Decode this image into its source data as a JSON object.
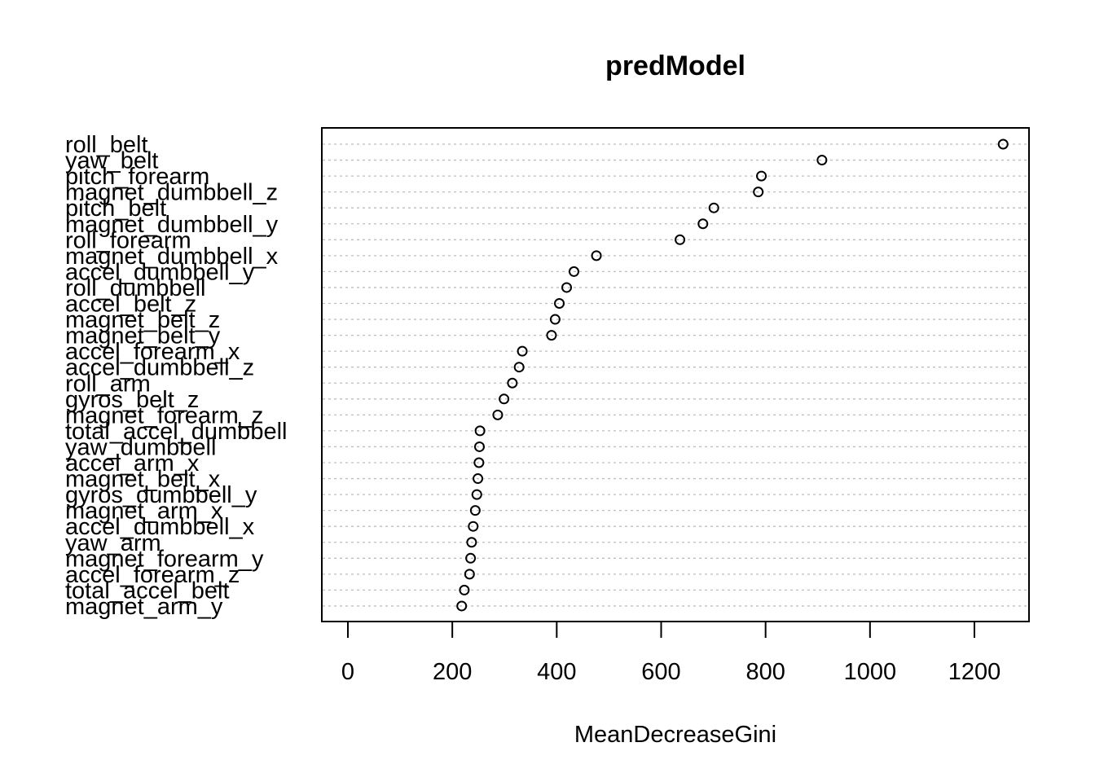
{
  "chart_data": {
    "type": "scatter",
    "title": "predModel",
    "xlabel": "MeanDecreaseGini",
    "ylabel": "",
    "xlim": [
      0,
      1300
    ],
    "xticks": [
      0,
      200,
      400,
      600,
      800,
      1000,
      1200
    ],
    "grid": true,
    "legend": "none",
    "categories": [
      "roll_belt",
      "yaw_belt",
      "pitch_forearm",
      "magnet_dumbbell_z",
      "pitch_belt",
      "magnet_dumbbell_y",
      "roll_forearm",
      "magnet_dumbbell_x",
      "accel_dumbbell_y",
      "roll_dumbbell",
      "accel_belt_z",
      "magnet_belt_z",
      "magnet_belt_y",
      "accel_forearm_x",
      "accel_dumbbell_z",
      "roll_arm",
      "gyros_belt_z",
      "magnet_forearm_z",
      "total_accel_dumbbell",
      "yaw_dumbbell",
      "accel_arm_x",
      "magnet_belt_x",
      "gyros_dumbbell_y",
      "magnet_arm_x",
      "accel_dumbbell_x",
      "yaw_arm",
      "magnet_forearm_y",
      "accel_forearm_z",
      "total_accel_belt",
      "magnet_arm_y"
    ],
    "values": [
      1255,
      908,
      792,
      786,
      701,
      680,
      636,
      476,
      433,
      419,
      405,
      397,
      390,
      334,
      328,
      315,
      299,
      287,
      253,
      252,
      251,
      249,
      247,
      244,
      240,
      237,
      235,
      233,
      223,
      218
    ]
  }
}
